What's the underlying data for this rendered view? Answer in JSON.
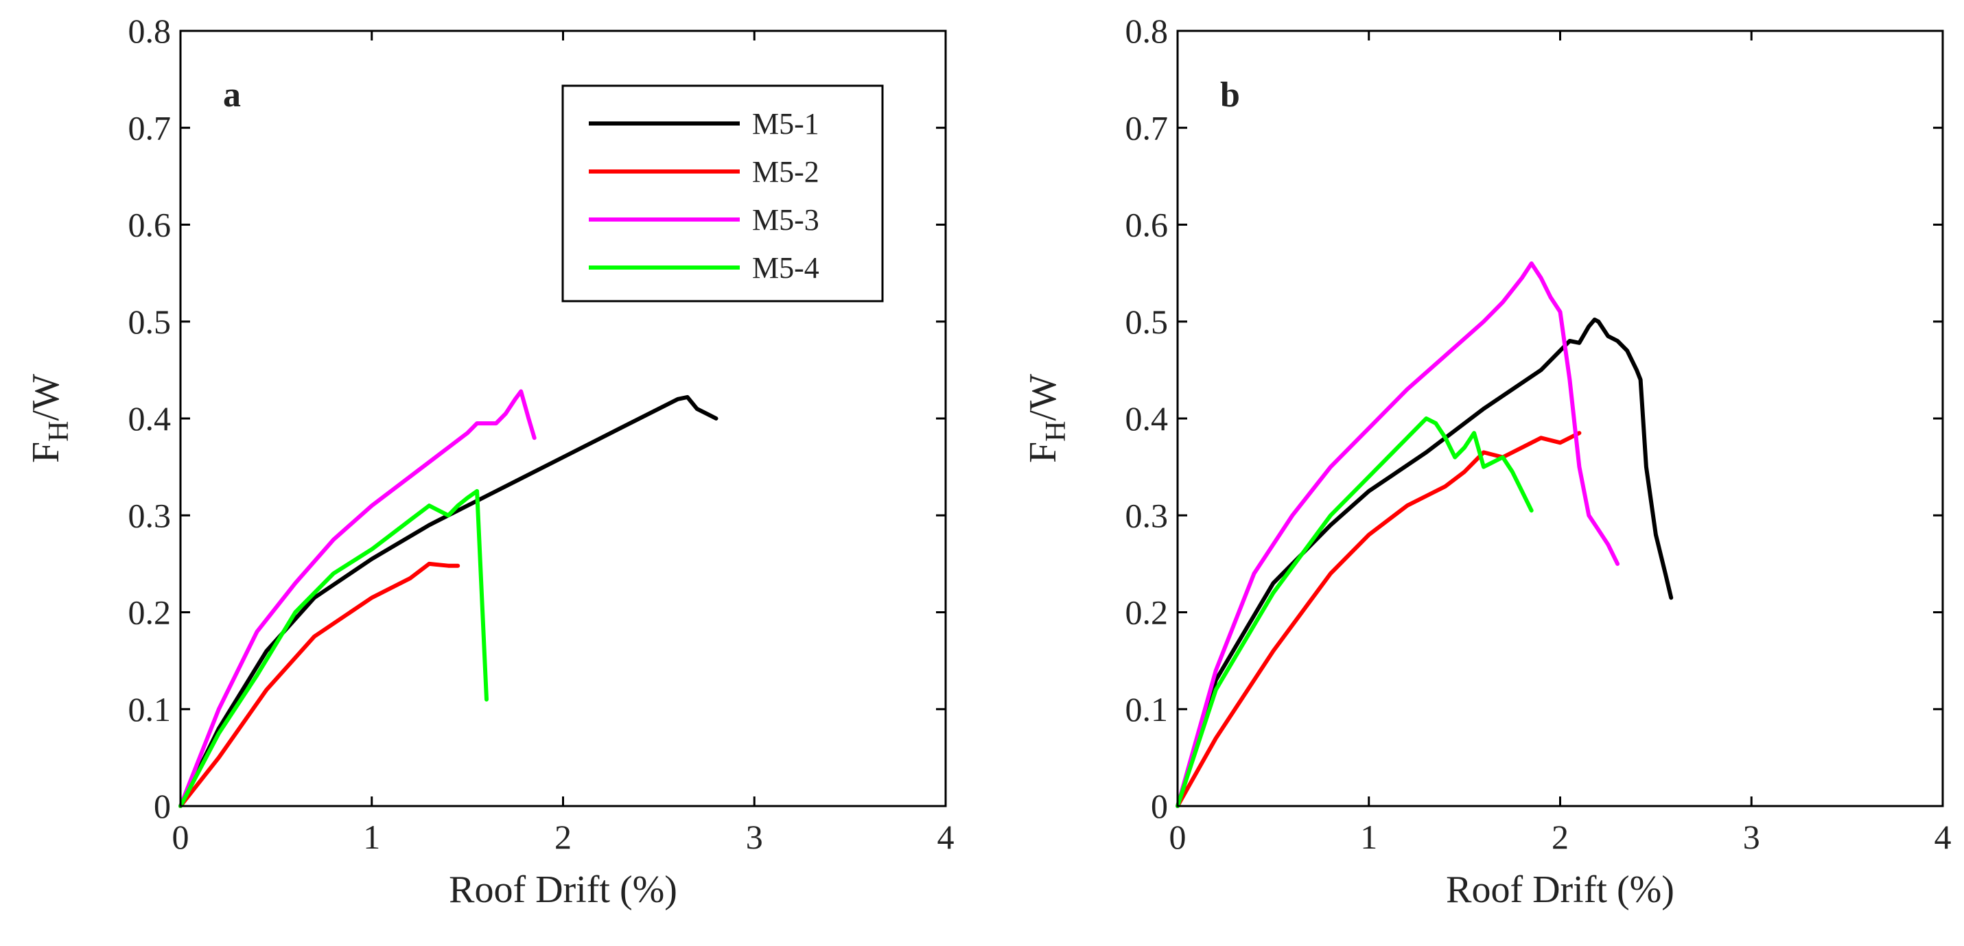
{
  "chart_data": [
    {
      "type": "line",
      "panel_label": "a",
      "xlabel": "Roof Drift (%)",
      "ylabel": {
        "main": "F",
        "sub": "H",
        "rest": "/W"
      },
      "xlim": [
        0,
        4
      ],
      "ylim": [
        0,
        0.8
      ],
      "xticks": [
        "0",
        "1",
        "2",
        "3",
        "4"
      ],
      "yticks": [
        "0",
        "0.1",
        "0.2",
        "0.3",
        "0.4",
        "0.5",
        "0.6",
        "0.7",
        "0.8"
      ],
      "grid": false,
      "legend": {
        "placement": "top-right",
        "entries": [
          "M5-1",
          "M5-2",
          "M5-3",
          "M5-4"
        ]
      },
      "series": [
        {
          "name": "M5-1",
          "color": "#000000",
          "points": [
            [
              0,
              0
            ],
            [
              0.2,
              0.08
            ],
            [
              0.45,
              0.16
            ],
            [
              0.7,
              0.215
            ],
            [
              1.0,
              0.255
            ],
            [
              1.3,
              0.29
            ],
            [
              1.6,
              0.32
            ],
            [
              2.0,
              0.36
            ],
            [
              2.3,
              0.39
            ],
            [
              2.6,
              0.42
            ],
            [
              2.65,
              0.422
            ],
            [
              2.7,
              0.41
            ],
            [
              2.75,
              0.405
            ],
            [
              2.8,
              0.4
            ]
          ]
        },
        {
          "name": "M5-2",
          "color": "#ff0000",
          "points": [
            [
              0,
              0
            ],
            [
              0.2,
              0.05
            ],
            [
              0.45,
              0.12
            ],
            [
              0.7,
              0.175
            ],
            [
              1.0,
              0.215
            ],
            [
              1.2,
              0.235
            ],
            [
              1.3,
              0.25
            ],
            [
              1.4,
              0.248
            ],
            [
              1.45,
              0.248
            ]
          ]
        },
        {
          "name": "M5-3",
          "color": "#ff00ff",
          "points": [
            [
              0,
              0
            ],
            [
              0.2,
              0.1
            ],
            [
              0.4,
              0.18
            ],
            [
              0.6,
              0.23
            ],
            [
              0.8,
              0.275
            ],
            [
              1.0,
              0.31
            ],
            [
              1.2,
              0.34
            ],
            [
              1.4,
              0.37
            ],
            [
              1.5,
              0.385
            ],
            [
              1.55,
              0.395
            ],
            [
              1.65,
              0.395
            ],
            [
              1.7,
              0.405
            ],
            [
              1.75,
              0.42
            ],
            [
              1.78,
              0.428
            ],
            [
              1.82,
              0.4
            ],
            [
              1.85,
              0.38
            ]
          ]
        },
        {
          "name": "M5-4",
          "color": "#00ff00",
          "points": [
            [
              0,
              0
            ],
            [
              0.2,
              0.075
            ],
            [
              0.4,
              0.135
            ],
            [
              0.6,
              0.2
            ],
            [
              0.8,
              0.24
            ],
            [
              1.0,
              0.265
            ],
            [
              1.2,
              0.295
            ],
            [
              1.3,
              0.31
            ],
            [
              1.35,
              0.305
            ],
            [
              1.4,
              0.3
            ],
            [
              1.45,
              0.31
            ],
            [
              1.5,
              0.318
            ],
            [
              1.55,
              0.325
            ],
            [
              1.6,
              0.11
            ]
          ]
        }
      ]
    },
    {
      "type": "line",
      "panel_label": "b",
      "xlabel": "Roof Drift (%)",
      "ylabel": {
        "main": "F",
        "sub": "H",
        "rest": "/W"
      },
      "xlim": [
        0,
        4
      ],
      "ylim": [
        0,
        0.8
      ],
      "xticks": [
        "0",
        "1",
        "2",
        "3",
        "4"
      ],
      "yticks": [
        "0",
        "0.1",
        "0.2",
        "0.3",
        "0.4",
        "0.5",
        "0.6",
        "0.7",
        "0.8"
      ],
      "grid": false,
      "series": [
        {
          "name": "M5-1",
          "color": "#000000",
          "points": [
            [
              0,
              0
            ],
            [
              0.2,
              0.13
            ],
            [
              0.5,
              0.23
            ],
            [
              0.8,
              0.29
            ],
            [
              1.0,
              0.325
            ],
            [
              1.3,
              0.365
            ],
            [
              1.6,
              0.41
            ],
            [
              1.9,
              0.45
            ],
            [
              2.0,
              0.47
            ],
            [
              2.05,
              0.48
            ],
            [
              2.1,
              0.478
            ],
            [
              2.15,
              0.495
            ],
            [
              2.18,
              0.502
            ],
            [
              2.2,
              0.5
            ],
            [
              2.25,
              0.485
            ],
            [
              2.3,
              0.48
            ],
            [
              2.35,
              0.47
            ],
            [
              2.4,
              0.45
            ],
            [
              2.42,
              0.44
            ],
            [
              2.45,
              0.35
            ],
            [
              2.5,
              0.28
            ],
            [
              2.55,
              0.24
            ],
            [
              2.58,
              0.215
            ]
          ]
        },
        {
          "name": "M5-2",
          "color": "#ff0000",
          "points": [
            [
              0,
              0
            ],
            [
              0.2,
              0.07
            ],
            [
              0.5,
              0.16
            ],
            [
              0.8,
              0.24
            ],
            [
              1.0,
              0.28
            ],
            [
              1.2,
              0.31
            ],
            [
              1.3,
              0.32
            ],
            [
              1.4,
              0.33
            ],
            [
              1.5,
              0.345
            ],
            [
              1.6,
              0.365
            ],
            [
              1.7,
              0.36
            ],
            [
              1.8,
              0.37
            ],
            [
              1.9,
              0.38
            ],
            [
              2.0,
              0.375
            ],
            [
              2.05,
              0.38
            ],
            [
              2.1,
              0.385
            ]
          ]
        },
        {
          "name": "M5-3",
          "color": "#ff00ff",
          "points": [
            [
              0,
              0
            ],
            [
              0.2,
              0.14
            ],
            [
              0.4,
              0.24
            ],
            [
              0.6,
              0.3
            ],
            [
              0.8,
              0.35
            ],
            [
              1.0,
              0.39
            ],
            [
              1.2,
              0.43
            ],
            [
              1.4,
              0.465
            ],
            [
              1.6,
              0.5
            ],
            [
              1.7,
              0.52
            ],
            [
              1.8,
              0.545
            ],
            [
              1.85,
              0.56
            ],
            [
              1.9,
              0.545
            ],
            [
              1.95,
              0.525
            ],
            [
              2.0,
              0.51
            ],
            [
              2.05,
              0.44
            ],
            [
              2.1,
              0.35
            ],
            [
              2.15,
              0.3
            ],
            [
              2.2,
              0.285
            ],
            [
              2.25,
              0.27
            ],
            [
              2.3,
              0.25
            ]
          ]
        },
        {
          "name": "M5-4",
          "color": "#00ff00",
          "points": [
            [
              0,
              0
            ],
            [
              0.2,
              0.12
            ],
            [
              0.5,
              0.22
            ],
            [
              0.8,
              0.3
            ],
            [
              1.0,
              0.34
            ],
            [
              1.2,
              0.38
            ],
            [
              1.3,
              0.4
            ],
            [
              1.35,
              0.395
            ],
            [
              1.4,
              0.38
            ],
            [
              1.45,
              0.36
            ],
            [
              1.5,
              0.37
            ],
            [
              1.55,
              0.385
            ],
            [
              1.6,
              0.35
            ],
            [
              1.65,
              0.355
            ],
            [
              1.7,
              0.36
            ],
            [
              1.75,
              0.345
            ],
            [
              1.8,
              0.325
            ],
            [
              1.85,
              0.305
            ]
          ]
        }
      ]
    }
  ]
}
